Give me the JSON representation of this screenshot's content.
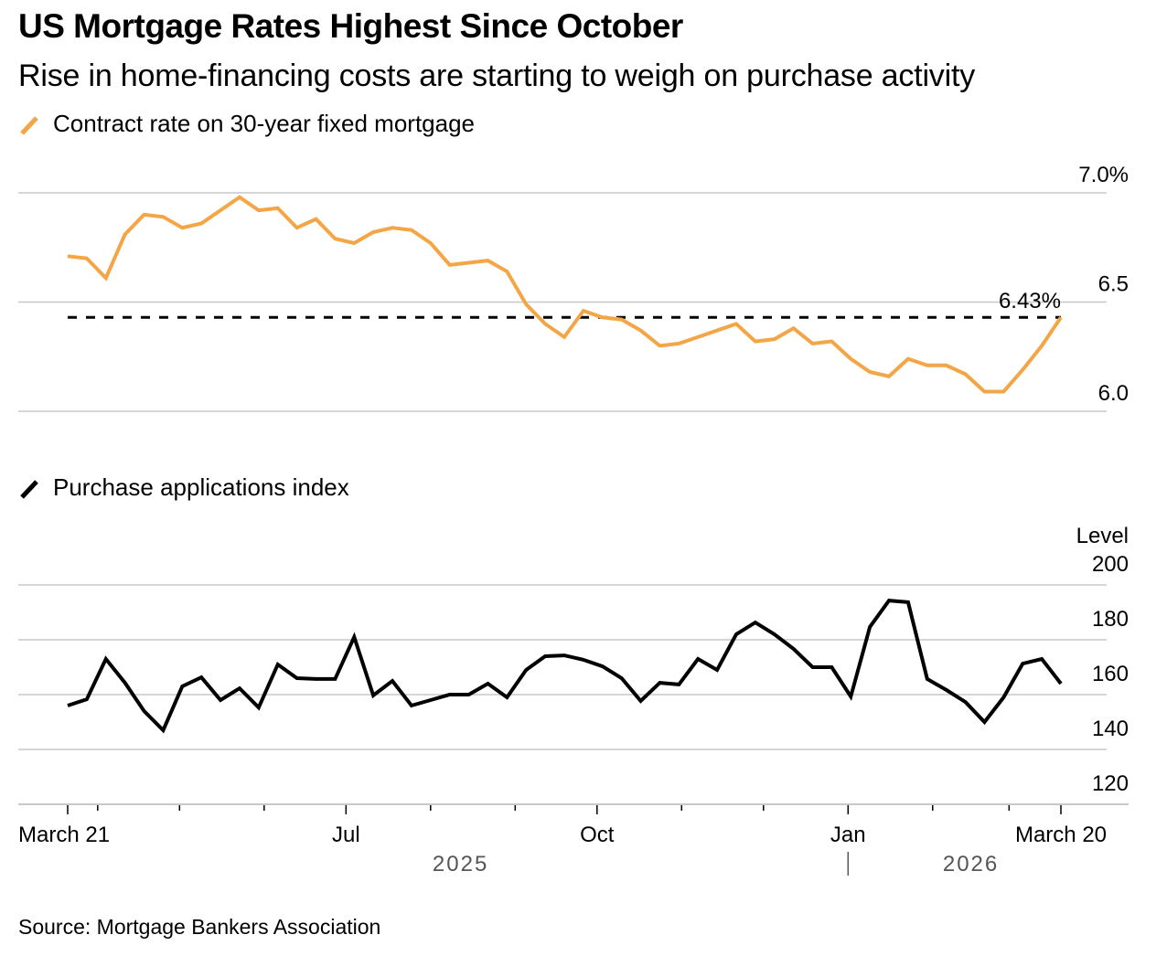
{
  "header": {
    "title": "US Mortgage Rates Highest Since October",
    "subtitle": "Rise in home-financing costs are starting to weigh on purchase activity"
  },
  "footer": {
    "source": "Source: Mortgage Bankers Association"
  },
  "colors": {
    "rate_line": "#f4a646",
    "purchase_line": "#000000",
    "gridline": "#c8c8c8",
    "reference_line": "#000000",
    "year_label": "#555555"
  },
  "chart_data": [
    {
      "type": "line",
      "title": "Contract rate on 30-year fixed mortgage",
      "legend": {
        "label": "Contract rate on 30-year fixed mortgage",
        "icon": "orange-line-swatch-icon",
        "placement": "top-left"
      },
      "x_start": "2025-03-21",
      "x_end": "2026-03-20",
      "frequency": "weekly",
      "ylim": [
        6.0,
        7.0
      ],
      "y_ticks": [
        {
          "value": 7.0,
          "label": "7.0%"
        },
        {
          "value": 6.5,
          "label": "6.5"
        },
        {
          "value": 6.0,
          "label": "6.0"
        }
      ],
      "grid": true,
      "axis_side": "right",
      "reference_line": {
        "value": 6.43,
        "label": "6.43%",
        "style": "dashed"
      },
      "series": [
        {
          "name": "Contract rate on 30-year fixed mortgage",
          "unit": "%",
          "values": [
            6.71,
            6.7,
            6.61,
            6.81,
            6.9,
            6.89,
            6.84,
            6.86,
            6.92,
            6.98,
            6.92,
            6.93,
            6.84,
            6.88,
            6.79,
            6.77,
            6.82,
            6.84,
            6.83,
            6.77,
            6.67,
            6.68,
            6.69,
            6.64,
            6.49,
            6.4,
            6.34,
            6.46,
            6.43,
            6.42,
            6.37,
            6.3,
            6.31,
            6.34,
            6.37,
            6.4,
            6.32,
            6.33,
            6.38,
            6.31,
            6.32,
            6.24,
            6.18,
            6.16,
            6.24,
            6.21,
            6.21,
            6.17,
            6.09,
            6.09,
            6.19,
            6.3,
            6.43
          ]
        }
      ]
    },
    {
      "type": "line",
      "title": "Purchase applications index",
      "legend": {
        "label": "Purchase applications index",
        "icon": "black-line-swatch-icon",
        "placement": "top-left"
      },
      "x_start": "2025-03-21",
      "x_end": "2026-03-20",
      "frequency": "weekly",
      "ylabel": "Level",
      "ylim": [
        120,
        200
      ],
      "y_ticks": [
        {
          "value": 200,
          "label": "200"
        },
        {
          "value": 180,
          "label": "180"
        },
        {
          "value": 160,
          "label": "160"
        },
        {
          "value": 140,
          "label": "140"
        },
        {
          "value": 120,
          "label": "120"
        }
      ],
      "grid": true,
      "axis_side": "right",
      "series": [
        {
          "name": "Purchase applications index",
          "values": [
            156.0,
            158.3,
            173.0,
            164.3,
            154.0,
            147.0,
            163.0,
            166.3,
            158.0,
            162.3,
            155.3,
            171.0,
            166.0,
            165.7,
            165.7,
            181.0,
            159.7,
            165.0,
            156.0,
            158.0,
            160.0,
            160.0,
            164.0,
            159.0,
            169.0,
            174.0,
            174.3,
            172.7,
            170.3,
            166.0,
            157.7,
            164.3,
            163.7,
            173.0,
            169.0,
            182.0,
            186.3,
            182.0,
            176.7,
            170.0,
            170.0,
            159.3,
            184.7,
            194.3,
            193.7,
            165.7,
            161.7,
            157.3,
            150.0,
            159.0,
            171.3,
            173.0,
            164.0
          ]
        }
      ]
    }
  ],
  "x_axis": {
    "ticks": [
      {
        "date": "2025-03-21",
        "label": "March 21",
        "major": true
      },
      {
        "date": "2025-04-01",
        "label": "",
        "major": false
      },
      {
        "date": "2025-05-01",
        "label": "",
        "major": false
      },
      {
        "date": "2025-06-01",
        "label": "",
        "major": false
      },
      {
        "date": "2025-07-01",
        "label": "Jul",
        "major": true
      },
      {
        "date": "2025-08-01",
        "label": "",
        "major": false
      },
      {
        "date": "2025-09-01",
        "label": "",
        "major": false
      },
      {
        "date": "2025-10-01",
        "label": "Oct",
        "major": true
      },
      {
        "date": "2025-11-01",
        "label": "",
        "major": false
      },
      {
        "date": "2025-12-01",
        "label": "",
        "major": false
      },
      {
        "date": "2026-01-01",
        "label": "Jan",
        "major": true
      },
      {
        "date": "2026-02-01",
        "label": "",
        "major": false
      },
      {
        "date": "2026-03-01",
        "label": "",
        "major": false
      },
      {
        "date": "2026-03-20",
        "label": "March 20",
        "major": true
      }
    ],
    "years": [
      {
        "label": "2025",
        "center_date": "2025-08-12"
      },
      {
        "label": "2026",
        "center_date": "2026-02-15"
      }
    ],
    "year_divider_date": "2026-01-01"
  }
}
